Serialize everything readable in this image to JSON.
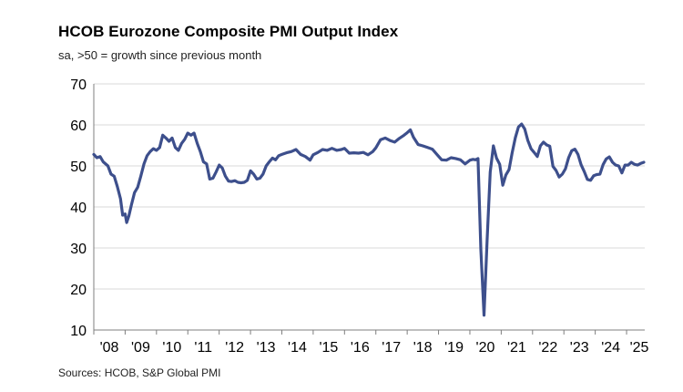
{
  "chart_data": {
    "type": "line",
    "title": "HCOB Eurozone Composite PMI Output Index",
    "subtitle": "sa, >50 = growth since previous month",
    "source": "Sources: HCOB, S&P Global PMI",
    "xlabel": "",
    "ylabel": "",
    "ylim": [
      10,
      70
    ],
    "yticks": [
      "70",
      "60",
      "50",
      "40",
      "30",
      "20",
      "10"
    ],
    "yticks_values": [
      70,
      60,
      50,
      40,
      30,
      20,
      10
    ],
    "xticks": [
      "'08",
      "'09",
      "'10",
      "'11",
      "'12",
      "'13",
      "'14",
      "'15",
      "'16",
      "'17",
      "'18",
      "'19",
      "'20",
      "'21",
      "'22",
      "'23",
      "'24",
      "'25"
    ],
    "xlim": [
      2008.0,
      2025.58
    ],
    "grid": "horizontal",
    "line_color": "#3d4f8c",
    "series": [
      {
        "name": "Composite PMI Output Index",
        "x": [
          2008.0,
          2008.1,
          2008.2,
          2008.3,
          2008.45,
          2008.55,
          2008.65,
          2008.75,
          2008.85,
          2008.92,
          2009.0,
          2009.05,
          2009.12,
          2009.2,
          2009.3,
          2009.4,
          2009.5,
          2009.6,
          2009.7,
          2009.8,
          2009.9,
          2010.0,
          2010.1,
          2010.2,
          2010.3,
          2010.4,
          2010.5,
          2010.6,
          2010.7,
          2010.8,
          2010.9,
          2011.0,
          2011.1,
          2011.2,
          2011.3,
          2011.4,
          2011.5,
          2011.6,
          2011.7,
          2011.8,
          2011.9,
          2012.0,
          2012.1,
          2012.2,
          2012.3,
          2012.4,
          2012.5,
          2012.6,
          2012.7,
          2012.8,
          2012.9,
          2013.0,
          2013.1,
          2013.2,
          2013.3,
          2013.4,
          2013.5,
          2013.6,
          2013.7,
          2013.8,
          2013.9,
          2014.0,
          2014.15,
          2014.3,
          2014.45,
          2014.6,
          2014.75,
          2014.9,
          2015.0,
          2015.15,
          2015.3,
          2015.45,
          2015.6,
          2015.75,
          2015.9,
          2016.0,
          2016.15,
          2016.3,
          2016.45,
          2016.6,
          2016.75,
          2016.9,
          2017.0,
          2017.15,
          2017.3,
          2017.45,
          2017.6,
          2017.75,
          2017.9,
          2018.0,
          2018.1,
          2018.2,
          2018.35,
          2018.5,
          2018.65,
          2018.8,
          2018.95,
          2019.1,
          2019.25,
          2019.4,
          2019.55,
          2019.7,
          2019.85,
          2020.0,
          2020.1,
          2020.18,
          2020.26,
          2020.35,
          2020.45,
          2020.55,
          2020.65,
          2020.75,
          2020.85,
          2020.95,
          2021.05,
          2021.15,
          2021.25,
          2021.35,
          2021.45,
          2021.55,
          2021.65,
          2021.75,
          2021.85,
          2021.95,
          2022.05,
          2022.15,
          2022.25,
          2022.35,
          2022.45,
          2022.55,
          2022.65,
          2022.75,
          2022.85,
          2022.95,
          2023.05,
          2023.15,
          2023.25,
          2023.35,
          2023.45,
          2023.55,
          2023.65,
          2023.75,
          2023.85,
          2023.95,
          2024.05,
          2024.15,
          2024.25,
          2024.35,
          2024.45,
          2024.55,
          2024.65,
          2024.75,
          2024.85,
          2024.95,
          2025.05,
          2025.15,
          2025.25,
          2025.35,
          2025.45,
          2025.55
        ],
        "values": [
          52.8,
          52.0,
          52.3,
          51.0,
          50.0,
          48.0,
          47.5,
          45.0,
          42.0,
          38.0,
          38.3,
          36.2,
          37.8,
          40.5,
          43.5,
          44.8,
          47.5,
          50.5,
          52.5,
          53.5,
          54.2,
          53.8,
          54.5,
          57.5,
          56.8,
          56.0,
          56.8,
          54.5,
          53.8,
          55.5,
          56.5,
          58.0,
          57.5,
          58.0,
          55.5,
          53.5,
          51.0,
          50.5,
          46.8,
          47.0,
          48.5,
          50.2,
          49.5,
          47.5,
          46.3,
          46.2,
          46.4,
          46.0,
          45.9,
          46.0,
          46.5,
          48.8,
          48.0,
          46.8,
          47.0,
          48.0,
          50.0,
          51.0,
          51.9,
          51.5,
          52.5,
          52.8,
          53.2,
          53.5,
          54.0,
          52.8,
          52.3,
          51.4,
          52.7,
          53.3,
          54.0,
          53.8,
          54.3,
          53.8,
          54.0,
          54.3,
          53.1,
          53.2,
          53.1,
          53.3,
          52.7,
          53.5,
          54.4,
          56.4,
          56.8,
          56.2,
          55.8,
          56.7,
          57.5,
          58.1,
          58.8,
          57.0,
          55.2,
          54.9,
          54.5,
          54.1,
          52.8,
          51.5,
          51.4,
          52.0,
          51.8,
          51.5,
          50.5,
          51.4,
          51.6,
          51.5,
          51.8,
          29.7,
          13.6,
          31.9,
          48.5,
          54.9,
          51.9,
          50.4,
          45.3,
          47.8,
          49.1,
          53.2,
          56.9,
          59.5,
          60.2,
          59.0,
          56.2,
          54.2,
          53.3,
          52.3,
          54.9,
          55.8,
          55.1,
          54.8,
          49.9,
          48.9,
          47.3,
          48.0,
          49.3,
          52.0,
          53.7,
          54.1,
          52.8,
          50.3,
          48.6,
          46.7,
          46.5,
          47.6,
          47.9,
          48.0,
          50.3,
          51.7,
          52.2,
          50.9,
          50.2,
          50.0,
          48.3,
          50.2,
          50.2,
          50.9,
          50.4,
          50.2,
          50.6,
          50.9
        ]
      }
    ]
  }
}
